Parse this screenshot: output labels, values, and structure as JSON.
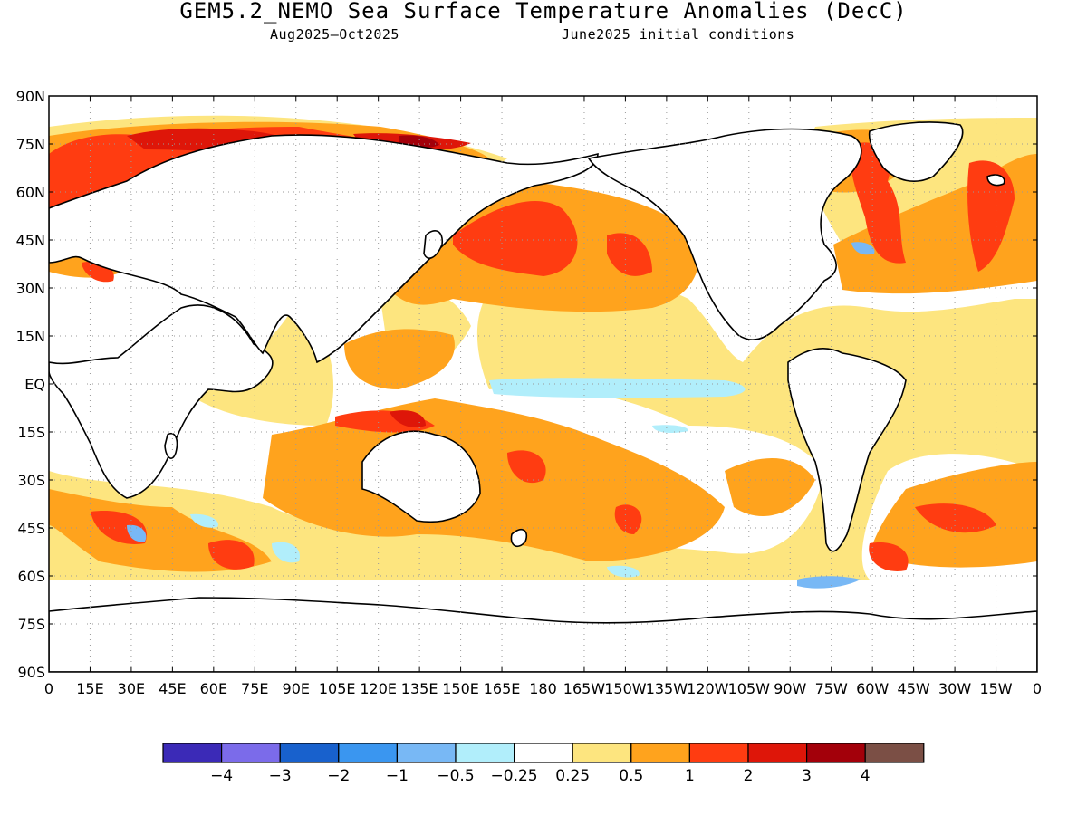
{
  "title": "GEM5.2_NEMO Sea Surface Temperature Anomalies (DecC)",
  "subtitle_left": "Aug2025—Oct2025",
  "subtitle_right": "June2025 initial conditions",
  "lat_ticks": [
    "90N",
    "75N",
    "60N",
    "45N",
    "30N",
    "15N",
    "EQ",
    "15S",
    "30S",
    "45S",
    "60S",
    "75S",
    "90S"
  ],
  "lon_ticks": [
    "0",
    "15E",
    "30E",
    "45E",
    "60E",
    "75E",
    "90E",
    "105E",
    "120E",
    "135E",
    "150E",
    "165E",
    "180",
    "165W",
    "150W",
    "135W",
    "120W",
    "105W",
    "90W",
    "75W",
    "60W",
    "45W",
    "30W",
    "15W",
    "0"
  ],
  "colorbar": {
    "colors": [
      "#3b2ab7",
      "#7b6bea",
      "#1861cd",
      "#3a96f0",
      "#78b8f5",
      "#b1eefb",
      "#ffffff",
      "#fde57f",
      "#ffa31d",
      "#ff3c11",
      "#de1609",
      "#a3000a",
      "#7b4f45"
    ],
    "labels": [
      "−4",
      "−3",
      "−2",
      "−1",
      "−0.5",
      "−0.25",
      "0.25",
      "0.5",
      "1",
      "2",
      "3",
      "4"
    ]
  },
  "map_colors": {
    "land_outline": "#000000",
    "grid": "#9a9a9a",
    "neutral": "#ffffff",
    "pos_025": "#fde57f",
    "pos_05": "#ffa31d",
    "pos_1": "#ff3c11",
    "pos_2": "#de1609",
    "pos_3": "#a3000a",
    "neg_025": "#b1eefb",
    "neg_05": "#78b8f5",
    "neg_1": "#3a96f0"
  }
}
